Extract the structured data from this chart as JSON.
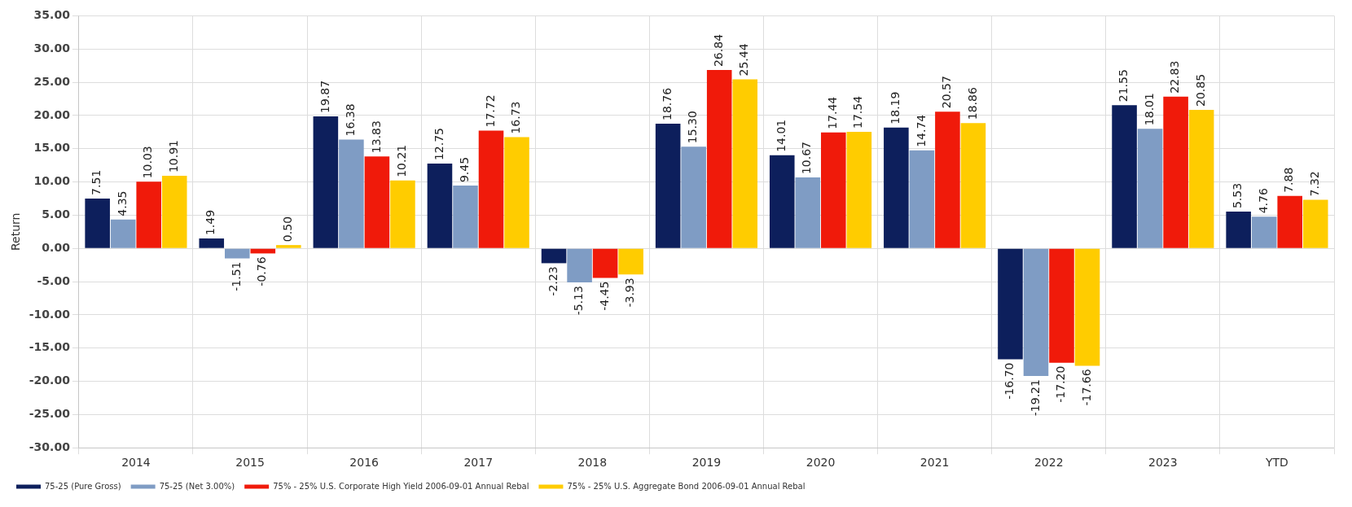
{
  "chart_data": {
    "type": "bar",
    "ylabel": "Return",
    "categories": [
      "2014",
      "2015",
      "2016",
      "2017",
      "2018",
      "2019",
      "2020",
      "2021",
      "2022",
      "2023",
      "YTD"
    ],
    "series": [
      {
        "name": "75-25 (Pure Gross)",
        "color": "#0d1f5c",
        "values": [
          7.51,
          1.49,
          19.87,
          12.75,
          -2.23,
          18.76,
          14.01,
          18.19,
          -16.7,
          21.55,
          5.53
        ],
        "value_labels": [
          "7.51",
          "1.49",
          "19.87",
          "12.75",
          "-2.23",
          "18.76",
          "14.01",
          "18.19",
          "-16.70",
          "21.55",
          "5.53"
        ]
      },
      {
        "name": "75-25 (Net 3.00%)",
        "color": "#7f9cc4",
        "values": [
          4.35,
          -1.51,
          16.38,
          9.45,
          -5.13,
          15.3,
          10.67,
          14.74,
          -19.21,
          18.01,
          4.76
        ],
        "value_labels": [
          "4.35",
          "-1.51",
          "16.38",
          "9.45",
          "-5.13",
          "15.30",
          "10.67",
          "14.74",
          "-19.21",
          "18.01",
          "4.76"
        ]
      },
      {
        "name": "75% - 25% U.S. Corporate High Yield 2006-09-01 Annual Rebal",
        "color": "#f01a0a",
        "values": [
          10.03,
          -0.76,
          13.83,
          17.72,
          -4.45,
          26.84,
          17.44,
          20.57,
          -17.2,
          22.83,
          7.88
        ],
        "value_labels": [
          "10.03",
          "-0.76",
          "13.83",
          "17.72",
          "-4.45",
          "26.84",
          "17.44",
          "20.57",
          "-17.20",
          "22.83",
          "7.88"
        ]
      },
      {
        "name": "75% - 25% U.S. Aggregate Bond 2006-09-01 Annual Rebal",
        "color": "#ffcc00",
        "values": [
          10.91,
          0.5,
          10.21,
          16.73,
          -3.93,
          25.44,
          17.54,
          18.86,
          -17.66,
          20.85,
          7.32
        ],
        "value_labels": [
          "10.91",
          "0.50",
          "10.21",
          "16.73",
          "-3.93",
          "25.44",
          "17.54",
          "18.86",
          "-17.66",
          "20.85",
          "7.32"
        ]
      }
    ],
    "ylim": [
      -30,
      35
    ],
    "yticks": [
      {
        "value": -30,
        "label": "-30.00"
      },
      {
        "value": -25,
        "label": "-25.00"
      },
      {
        "value": -20,
        "label": "-20.00"
      },
      {
        "value": -15,
        "label": "-15.00"
      },
      {
        "value": -10,
        "label": "-10.00"
      },
      {
        "value": -5,
        "label": "-5.00"
      },
      {
        "value": 0,
        "label": "0.00"
      },
      {
        "value": 5,
        "label": "5.00"
      },
      {
        "value": 10,
        "label": "10.00"
      },
      {
        "value": 15,
        "label": "15.00"
      },
      {
        "value": 20,
        "label": "20.00"
      },
      {
        "value": 25,
        "label": "25.00"
      },
      {
        "value": 30,
        "label": "30.00"
      },
      {
        "value": 35,
        "label": "35.00"
      }
    ],
    "grid": true,
    "legend": "bottom"
  }
}
